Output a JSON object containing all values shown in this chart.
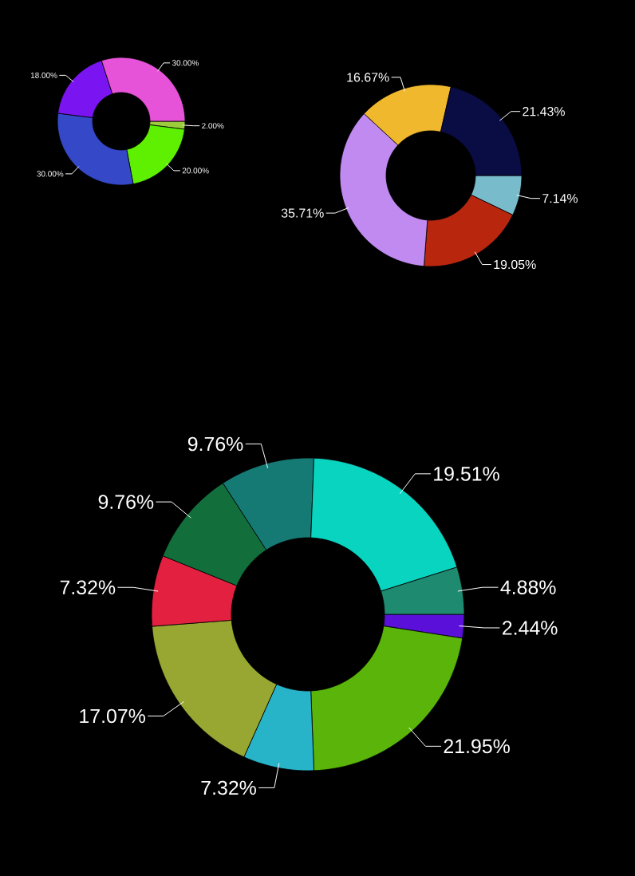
{
  "chart_data": [
    {
      "type": "donut",
      "categories": [
        null,
        null,
        null,
        null,
        null
      ],
      "values": [
        2,
        20,
        30,
        18,
        30
      ],
      "colors": [
        "#9ccc3c",
        "#5ef000",
        "#3448c8",
        "#7a14f0",
        "#e653d8"
      ],
      "value_labels": [
        "2.00%",
        "20.00%",
        "30.00%",
        "18.00%",
        "30.00%"
      ]
    },
    {
      "type": "donut",
      "categories": [
        null,
        null,
        null,
        null,
        null
      ],
      "values": [
        7.14,
        19.05,
        35.71,
        16.67,
        21.43
      ],
      "colors": [
        "#78bccc",
        "#b8260e",
        "#c08af0",
        "#f0b82c",
        "#0a0c44"
      ],
      "value_labels": [
        "7.14%",
        "19.05%",
        "35.71%",
        "16.67%",
        "21.43%"
      ]
    },
    {
      "type": "donut",
      "categories": [
        null,
        null,
        null,
        null,
        null,
        null,
        null,
        null,
        null
      ],
      "values": [
        2.44,
        21.95,
        7.32,
        17.07,
        7.32,
        9.76,
        9.76,
        19.51,
        4.88
      ],
      "colors": [
        "#5a10d8",
        "#5ab40a",
        "#28b4c8",
        "#98a632",
        "#e42040",
        "#126e3a",
        "#167a74",
        "#08d4c0",
        "#1e8a70"
      ],
      "value_labels": [
        "2.44%",
        "21.95%",
        "7.32%",
        "17.07%",
        "7.32%",
        "9.76%",
        "9.76%",
        "19.51%",
        "4.88%"
      ]
    }
  ]
}
